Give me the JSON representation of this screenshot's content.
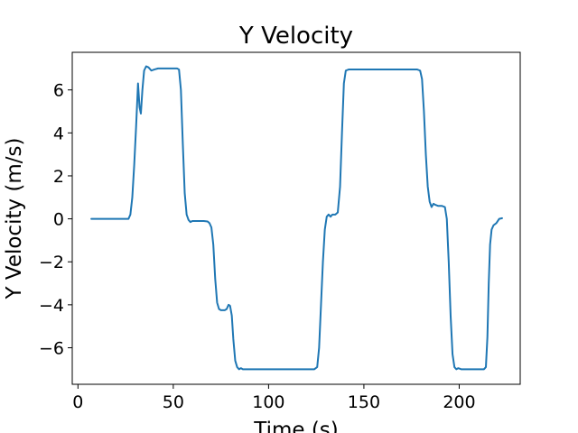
{
  "chart_data": {
    "type": "line",
    "title": "Y Velocity",
    "xlabel": "Time (s)",
    "ylabel": "Y Velocity (m/s)",
    "xlim": [
      -3,
      232
    ],
    "ylim": [
      -7.7,
      7.75
    ],
    "xticks": [
      0,
      50,
      100,
      150,
      200
    ],
    "yticks": [
      -6,
      -4,
      -2,
      0,
      2,
      4,
      6
    ],
    "xtick_labels": [
      "0",
      "50",
      "100",
      "150",
      "200"
    ],
    "ytick_labels": [
      "−6",
      "−4",
      "−2",
      "0",
      "2",
      "4",
      "6"
    ],
    "grid": false,
    "series": [
      {
        "color": "#1f77b4",
        "x": [
          7,
          15,
          22,
          26.5,
          27.5,
          28.5,
          29.5,
          30.5,
          31.5,
          32.3,
          33,
          33.8,
          34.7,
          35.8,
          37,
          38.5,
          40,
          42,
          44,
          46,
          48,
          50,
          52,
          53,
          54,
          55,
          56,
          57,
          58,
          59,
          60,
          62,
          64,
          66,
          68,
          69,
          70,
          71,
          72,
          73,
          74,
          75,
          76,
          77,
          78,
          79,
          79.8,
          80.7,
          81.5,
          82.5,
          83.5,
          84.5,
          85.5,
          86.5,
          88,
          90,
          95,
          100,
          105,
          110,
          115,
          120,
          124,
          125.5,
          126.5,
          127.5,
          128.5,
          129.5,
          130.5,
          131.5,
          132.5,
          133.5,
          135,
          136.3,
          137.5,
          138.5,
          139.5,
          140.5,
          142,
          145,
          150,
          160,
          170,
          178,
          179.5,
          180.5,
          181.5,
          182.5,
          183.5,
          184.5,
          185.5,
          186.5,
          187.5,
          189,
          191,
          192.5,
          193.5,
          194.5,
          195.5,
          196.5,
          197.5,
          198.5,
          199.5,
          201,
          203,
          205,
          210,
          213,
          214,
          214.8,
          215.5,
          216.2,
          217,
          218,
          219.5,
          221,
          222.5
        ],
        "values": [
          0.0,
          0.0,
          0.0,
          0.0,
          0.2,
          1.0,
          2.5,
          4.3,
          6.3,
          5.2,
          4.9,
          6.0,
          6.9,
          7.1,
          7.05,
          6.9,
          6.95,
          7.0,
          7.0,
          7.0,
          7.0,
          7.0,
          7.0,
          6.95,
          6.0,
          3.5,
          1.2,
          0.2,
          -0.05,
          -0.15,
          -0.1,
          -0.1,
          -0.1,
          -0.1,
          -0.12,
          -0.2,
          -0.4,
          -1.2,
          -2.8,
          -3.9,
          -4.2,
          -4.25,
          -4.25,
          -4.25,
          -4.2,
          -4.0,
          -4.05,
          -4.5,
          -5.6,
          -6.6,
          -6.9,
          -7.0,
          -6.95,
          -7.0,
          -7.0,
          -7.0,
          -7.0,
          -7.0,
          -7.0,
          -7.0,
          -7.0,
          -7.0,
          -7.0,
          -6.9,
          -6.0,
          -4.0,
          -2.0,
          -0.5,
          0.1,
          0.2,
          0.1,
          0.2,
          0.2,
          0.3,
          1.5,
          4.0,
          6.3,
          6.9,
          6.95,
          6.95,
          6.95,
          6.95,
          6.95,
          6.95,
          6.9,
          6.5,
          5.0,
          3.0,
          1.5,
          0.8,
          0.55,
          0.7,
          0.65,
          0.6,
          0.6,
          0.55,
          0.0,
          -2.0,
          -4.5,
          -6.3,
          -6.9,
          -7.0,
          -6.95,
          -7.0,
          -7.0,
          -7.0,
          -7.0,
          -7.0,
          -6.9,
          -5.5,
          -3.0,
          -1.2,
          -0.5,
          -0.3,
          -0.2,
          0.0,
          0.03
        ]
      }
    ]
  }
}
